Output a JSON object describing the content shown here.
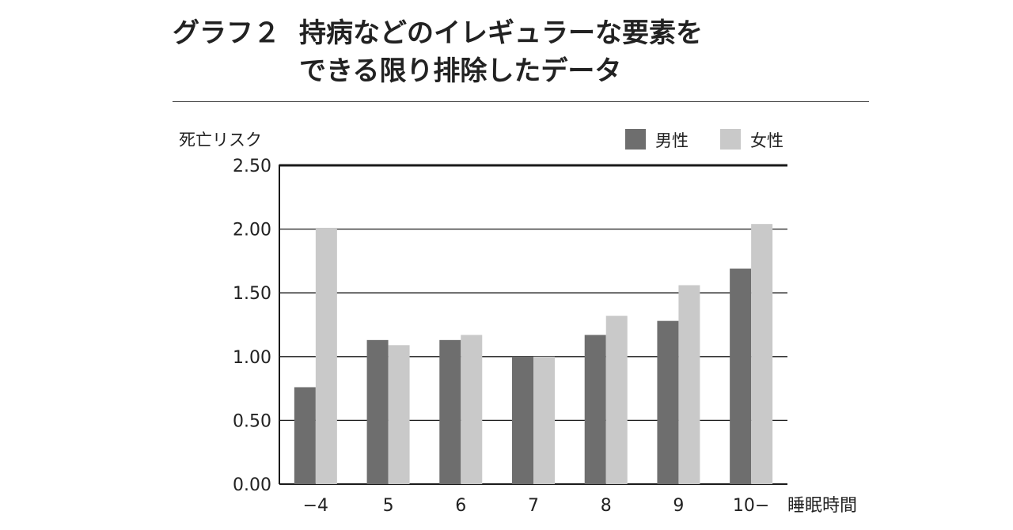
{
  "title": {
    "prefix": "グラフ２",
    "line1": "持病などのイレギュラーな要素を",
    "line2": "できる限り排除したデータ"
  },
  "chart_data": {
    "type": "bar",
    "ylabel": "死亡リスク",
    "xlabel": "睡眠時間",
    "categories": [
      "−4",
      "5",
      "6",
      "7",
      "8",
      "9",
      "10−"
    ],
    "series": [
      {
        "name": "男性",
        "color": "#6e6e6e",
        "values": [
          0.76,
          1.13,
          1.13,
          1.0,
          1.17,
          1.28,
          1.69
        ]
      },
      {
        "name": "女性",
        "color": "#c9c9c9",
        "values": [
          2.01,
          1.09,
          1.17,
          1.0,
          1.32,
          1.56,
          2.04
        ]
      }
    ],
    "ylim": [
      0,
      2.5
    ],
    "yticks": [
      "0.00",
      "0.50",
      "1.00",
      "1.50",
      "2.00",
      "2.50"
    ],
    "grid": true,
    "legend_position": "top-right"
  }
}
